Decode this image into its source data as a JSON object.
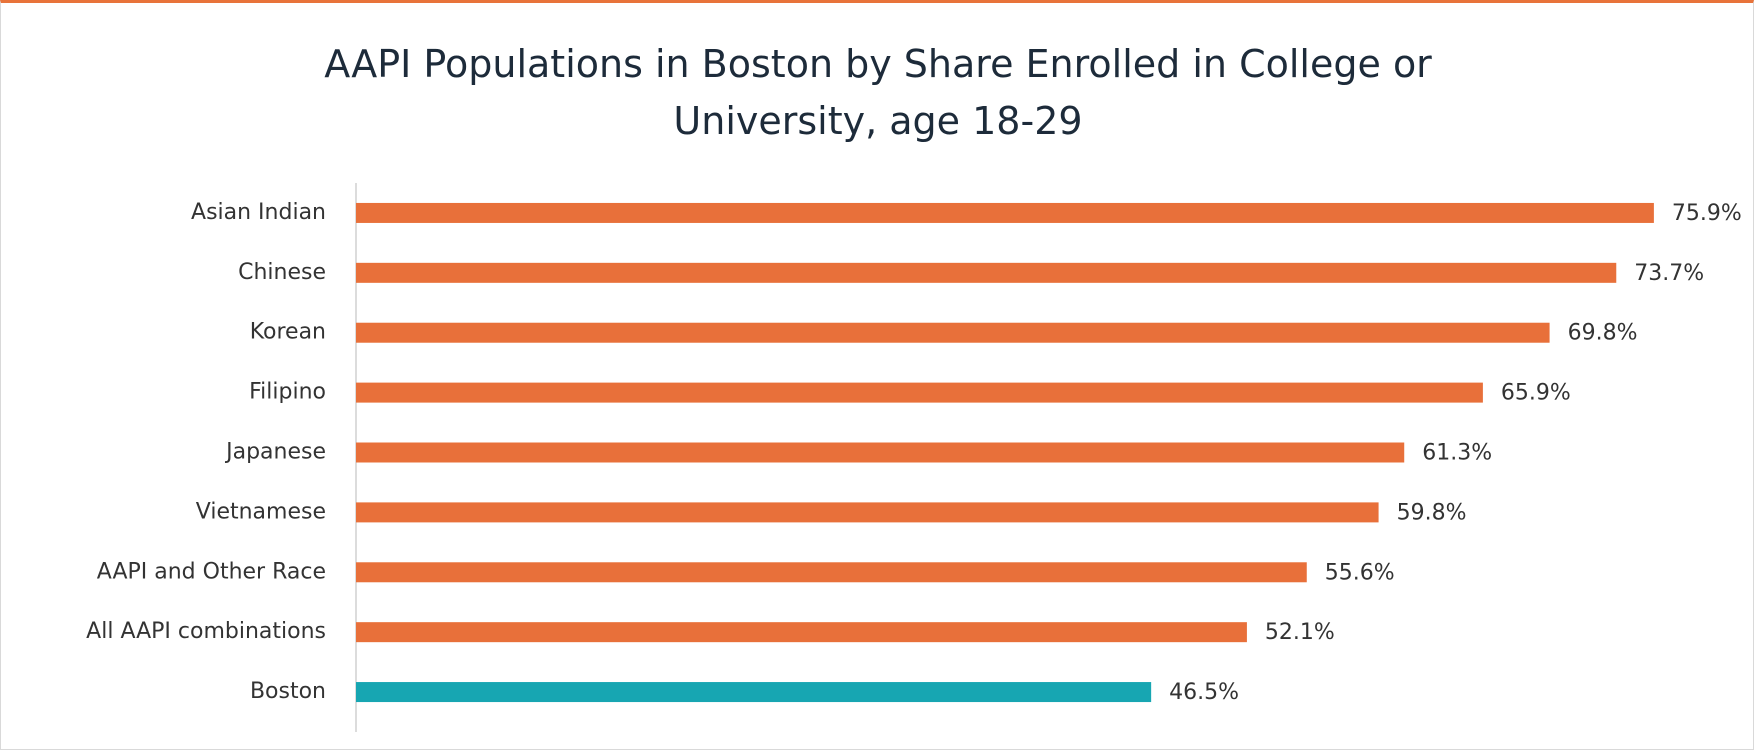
{
  "chart_data": {
    "type": "hbar",
    "title": "AAPI Populations in Boston by Share Enrolled in College or University, age 18-29",
    "categories": [
      "Asian Indian",
      "Chinese",
      "Korean",
      "Filipino",
      "Japanese",
      "Vietnamese",
      "AAPI and Other Race",
      "All AAPI combinations",
      "Boston"
    ],
    "values": [
      75.9,
      73.7,
      69.8,
      65.9,
      61.3,
      59.8,
      55.6,
      52.1,
      46.5
    ],
    "value_labels": [
      "75.9%",
      "73.7%",
      "69.8%",
      "65.9%",
      "61.3%",
      "59.8%",
      "55.6%",
      "52.1%",
      "46.5%"
    ],
    "colors": [
      "#e8703a",
      "#e8703a",
      "#e8703a",
      "#e8703a",
      "#e8703a",
      "#e8703a",
      "#e8703a",
      "#e8703a",
      "#17a6b2"
    ],
    "xlim": [
      0,
      80
    ]
  }
}
